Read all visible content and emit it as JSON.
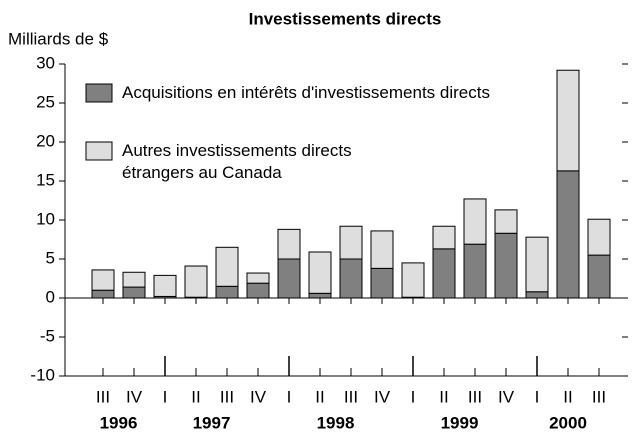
{
  "chart_data": {
    "type": "stacked_bar",
    "title": "Investissements directs",
    "y_label": "Milliards de $",
    "categories": [
      {
        "quarter": "III",
        "year": "1996"
      },
      {
        "quarter": "IV",
        "year": "1996"
      },
      {
        "quarter": "I",
        "year": "1997"
      },
      {
        "quarter": "II",
        "year": "1997"
      },
      {
        "quarter": "III",
        "year": "1997"
      },
      {
        "quarter": "IV",
        "year": "1997"
      },
      {
        "quarter": "I",
        "year": "1998"
      },
      {
        "quarter": "II",
        "year": "1998"
      },
      {
        "quarter": "III",
        "year": "1998"
      },
      {
        "quarter": "IV",
        "year": "1998"
      },
      {
        "quarter": "I",
        "year": "1999"
      },
      {
        "quarter": "II",
        "year": "1999"
      },
      {
        "quarter": "III",
        "year": "1999"
      },
      {
        "quarter": "IV",
        "year": "1999"
      },
      {
        "quarter": "I",
        "year": "2000"
      },
      {
        "quarter": "II",
        "year": "2000"
      },
      {
        "quarter": "III",
        "year": "2000"
      }
    ],
    "series": [
      {
        "name": "Acquisitions en intérêts d'investissements directs",
        "color": "#808080",
        "values": [
          1.0,
          1.4,
          0.2,
          0.1,
          1.5,
          1.9,
          5.0,
          0.6,
          5.0,
          3.8,
          0.1,
          6.3,
          6.9,
          8.3,
          0.8,
          16.3,
          5.5
        ]
      },
      {
        "name": "Autres investissements directs étrangers au Canada",
        "color": "#dedede",
        "values": [
          2.6,
          1.9,
          2.7,
          4.0,
          5.0,
          1.3,
          3.8,
          5.3,
          4.2,
          4.8,
          4.4,
          2.9,
          5.8,
          3.0,
          7.0,
          12.9,
          4.6
        ]
      }
    ],
    "ylim": [
      -10,
      30
    ],
    "yticks": [
      -10,
      -5,
      0,
      5,
      10,
      15,
      20,
      25,
      30
    ]
  }
}
